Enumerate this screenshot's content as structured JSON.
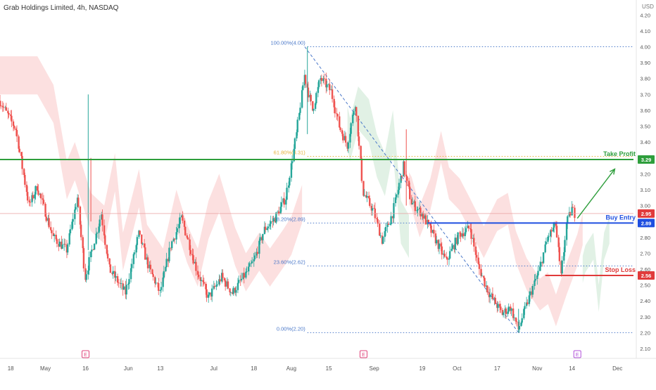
{
  "header": {
    "title": "Grab Holdings Limited, 4h, NASDAQ",
    "currency": "USD"
  },
  "chart_data": {
    "type": "candlestick",
    "title": "Grab Holdings Limited, 4h, NASDAQ",
    "ylim": [
      2.1,
      4.25
    ],
    "y_ticks": [
      "4.20",
      "4.10",
      "4.00",
      "3.90",
      "3.80",
      "3.70",
      "3.60",
      "3.50",
      "3.40",
      "3.30",
      "3.20",
      "3.10",
      "3.00",
      "2.90",
      "2.80",
      "2.70",
      "2.60",
      "2.50",
      "2.40",
      "2.30",
      "2.20",
      "2.10"
    ],
    "x_range": [
      "Apr 14",
      "Dec 7"
    ],
    "x_ticks": [
      {
        "label": "18",
        "date": "2023-04-18"
      },
      {
        "label": "May",
        "date": "2023-05-01"
      },
      {
        "label": "16",
        "date": "2023-05-16"
      },
      {
        "label": "Jun",
        "date": "2023-06-01"
      },
      {
        "label": "13",
        "date": "2023-06-13"
      },
      {
        "label": "Jul",
        "date": "2023-07-03"
      },
      {
        "label": "18",
        "date": "2023-07-18"
      },
      {
        "label": "Aug",
        "date": "2023-08-01"
      },
      {
        "label": "15",
        "date": "2023-08-15"
      },
      {
        "label": "Sep",
        "date": "2023-09-01"
      },
      {
        "label": "19",
        "date": "2023-09-19"
      },
      {
        "label": "Oct",
        "date": "2023-10-02"
      },
      {
        "label": "17",
        "date": "2023-10-17"
      },
      {
        "label": "Nov",
        "date": "2023-11-01"
      },
      {
        "label": "14",
        "date": "2023-11-14"
      },
      {
        "label": "Dec",
        "date": "2023-12-01"
      }
    ],
    "price_path": [
      [
        "2023-04-14",
        3.66
      ],
      [
        "2023-04-20",
        3.48
      ],
      [
        "2023-04-25",
        3.0
      ],
      [
        "2023-04-28",
        3.12
      ],
      [
        "2023-05-04",
        2.8
      ],
      [
        "2023-05-09",
        2.72
      ],
      [
        "2023-05-13",
        3.05
      ],
      [
        "2023-05-16",
        2.55
      ],
      [
        "2023-05-22",
        2.95
      ],
      [
        "2023-05-25",
        2.6
      ],
      [
        "2023-05-31",
        2.45
      ],
      [
        "2023-06-05",
        2.82
      ],
      [
        "2023-06-09",
        2.6
      ],
      [
        "2023-06-13",
        2.45
      ],
      [
        "2023-06-17",
        2.75
      ],
      [
        "2023-06-21",
        2.92
      ],
      [
        "2023-06-27",
        2.58
      ],
      [
        "2023-07-01",
        2.42
      ],
      [
        "2023-07-06",
        2.55
      ],
      [
        "2023-07-10",
        2.45
      ],
      [
        "2023-07-15",
        2.57
      ],
      [
        "2023-07-18",
        2.65
      ],
      [
        "2023-07-22",
        2.85
      ],
      [
        "2023-07-26",
        2.92
      ],
      [
        "2023-07-30",
        3.05
      ],
      [
        "2023-08-03",
        3.45
      ],
      [
        "2023-08-06",
        3.82
      ],
      [
        "2023-08-09",
        3.6
      ],
      [
        "2023-08-12",
        3.8
      ],
      [
        "2023-08-16",
        3.72
      ],
      [
        "2023-08-19",
        3.5
      ],
      [
        "2023-08-22",
        3.38
      ],
      [
        "2023-08-25",
        3.65
      ],
      [
        "2023-08-28",
        3.08
      ],
      [
        "2023-09-01",
        2.96
      ],
      [
        "2023-09-04",
        2.78
      ],
      [
        "2023-09-08",
        2.95
      ],
      [
        "2023-09-12",
        3.25
      ],
      [
        "2023-09-15",
        3.02
      ],
      [
        "2023-09-19",
        2.95
      ],
      [
        "2023-09-23",
        2.82
      ],
      [
        "2023-09-28",
        2.65
      ],
      [
        "2023-10-03",
        2.82
      ],
      [
        "2023-10-07",
        2.86
      ],
      [
        "2023-10-10",
        2.62
      ],
      [
        "2023-10-14",
        2.45
      ],
      [
        "2023-10-19",
        2.32
      ],
      [
        "2023-10-22",
        2.36
      ],
      [
        "2023-10-25",
        2.22
      ],
      [
        "2023-10-29",
        2.42
      ],
      [
        "2023-11-02",
        2.6
      ],
      [
        "2023-11-05",
        2.8
      ],
      [
        "2023-11-08",
        2.88
      ],
      [
        "2023-11-10",
        2.55
      ],
      [
        "2023-11-12",
        2.88
      ],
      [
        "2023-11-14",
        2.98
      ],
      [
        "2023-11-15",
        2.95
      ]
    ],
    "fibonacci": [
      {
        "label": "100.00%(4.00)",
        "price": 4.0
      },
      {
        "label": "61.80%(3.31)",
        "price": 3.31
      },
      {
        "label": "38.20%(2.89)",
        "price": 2.89
      },
      {
        "label": "23.60%(2.62)",
        "price": 2.62
      },
      {
        "label": "0.00%(2.20)",
        "price": 2.2
      }
    ],
    "levels": [
      {
        "name": "Take Profit",
        "price": 3.29,
        "badge": "3.29",
        "color": "#2e9e3c"
      },
      {
        "name": "Buy Entry",
        "price": 2.89,
        "badge": "2.89",
        "color": "#1f4fe0"
      },
      {
        "name": "Stop Loss",
        "price": 2.56,
        "badge": "2.56",
        "color": "#e03b3b"
      }
    ],
    "current_price": {
      "price": 2.95,
      "badge": "2.95"
    },
    "event_markers": [
      {
        "label": "E",
        "date": "2023-05-16",
        "color": "#e0457b"
      },
      {
        "label": "E",
        "date": "2023-08-28",
        "color": "#e0457b"
      },
      {
        "label": "E",
        "date": "2023-11-16",
        "color": "#b04fd8"
      }
    ],
    "colors": {
      "up": "#26a69a",
      "down": "#ef5350",
      "cloud_bear": "#fbdada",
      "cloud_bull": "#dcefe0",
      "fib": "#4a78c9"
    }
  }
}
